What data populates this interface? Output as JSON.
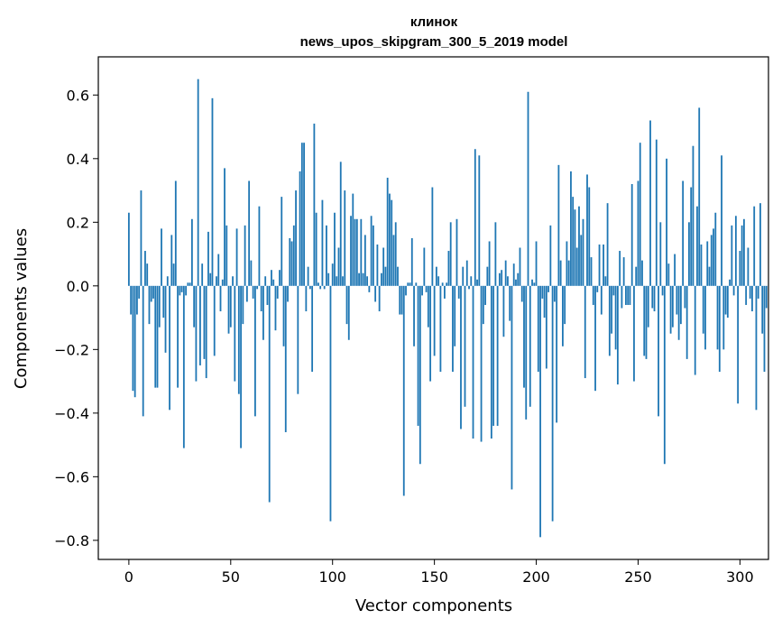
{
  "chart_data": {
    "type": "bar",
    "title": [
      "клинок",
      "news_upos_skipgram_300_5_2019 model"
    ],
    "xlabel": "Vector components",
    "ylabel": "Components values",
    "xlim": [
      -15,
      314
    ],
    "ylim": [
      -0.86,
      0.72
    ],
    "xticks": [
      0,
      50,
      100,
      150,
      200,
      250,
      300
    ],
    "yticks": [
      -0.8,
      -0.6,
      -0.4,
      -0.2,
      0.0,
      0.2,
      0.4,
      0.6
    ],
    "ytick_labels": [
      "−0.8",
      "−0.6",
      "−0.4",
      "−0.2",
      "0.0",
      "0.2",
      "0.4",
      "0.6"
    ],
    "bar_color": "#1f77b4",
    "values": [
      0.23,
      -0.09,
      -0.33,
      -0.35,
      -0.09,
      -0.04,
      0.3,
      -0.41,
      0.11,
      0.07,
      -0.12,
      -0.05,
      -0.04,
      -0.32,
      -0.32,
      -0.13,
      0.18,
      -0.1,
      -0.21,
      0.03,
      -0.39,
      0.16,
      0.07,
      0.33,
      -0.32,
      -0.03,
      -0.02,
      -0.51,
      -0.03,
      0.01,
      0.01,
      0.21,
      -0.13,
      -0.3,
      0.65,
      -0.25,
      0.07,
      -0.23,
      -0.29,
      0.17,
      0.04,
      0.59,
      -0.22,
      0.03,
      0.1,
      -0.08,
      0.02,
      0.37,
      0.19,
      -0.15,
      -0.13,
      0.03,
      -0.3,
      0.18,
      -0.34,
      -0.51,
      -0.12,
      0.19,
      -0.05,
      0.33,
      0.08,
      -0.04,
      -0.41,
      -0.01,
      0.25,
      -0.08,
      -0.17,
      0.03,
      -0.06,
      -0.68,
      0.05,
      0.02,
      -0.14,
      -0.04,
      0.05,
      0.28,
      -0.19,
      -0.46,
      -0.05,
      0.15,
      0.14,
      0.19,
      0.3,
      -0.34,
      0.36,
      0.45,
      0.45,
      -0.08,
      0.06,
      -0.01,
      -0.27,
      0.51,
      0.23,
      0.01,
      -0.01,
      0.27,
      -0.01,
      0.19,
      0.04,
      -0.74,
      0.07,
      0.23,
      0.03,
      0.12,
      0.39,
      0.03,
      0.3,
      -0.12,
      -0.17,
      0.22,
      0.29,
      0.21,
      0.21,
      0.04,
      0.21,
      0.04,
      0.16,
      0.03,
      -0.02,
      0.22,
      0.19,
      -0.05,
      0.13,
      -0.08,
      0.04,
      0.12,
      0.06,
      0.34,
      0.29,
      0.27,
      0.16,
      0.2,
      0.06,
      -0.09,
      -0.09,
      -0.66,
      -0.03,
      0.01,
      0.01,
      0.15,
      -0.19,
      0.01,
      -0.44,
      -0.56,
      -0.03,
      0.12,
      -0.02,
      -0.13,
      -0.3,
      0.31,
      -0.22,
      0.06,
      0.03,
      -0.27,
      0.01,
      -0.04,
      0.01,
      0.11,
      0.2,
      -0.27,
      -0.19,
      0.21,
      -0.04,
      -0.45,
      0.06,
      -0.38,
      0.08,
      -0.01,
      0.03,
      -0.48,
      0.43,
      0.02,
      0.41,
      -0.49,
      -0.12,
      -0.06,
      0.06,
      0.14,
      -0.48,
      -0.44,
      0.2,
      -0.44,
      0.04,
      0.05,
      -0.16,
      0.08,
      0.03,
      -0.11,
      -0.64,
      0.07,
      0.02,
      0.04,
      0.12,
      -0.05,
      -0.32,
      -0.42,
      0.61,
      -0.38,
      0.02,
      0.01,
      0.14,
      -0.27,
      -0.79,
      -0.04,
      -0.1,
      -0.26,
      -0.02,
      0.19,
      -0.74,
      -0.05,
      -0.43,
      0.38,
      0.08,
      -0.19,
      -0.12,
      0.14,
      0.08,
      0.36,
      0.28,
      0.24,
      0.12,
      0.25,
      0.16,
      0.21,
      -0.29,
      0.35,
      0.31,
      0.09,
      -0.06,
      -0.33,
      -0.02,
      0.13,
      -0.09,
      0.13,
      0.03,
      0.26,
      -0.22,
      -0.15,
      -0.03,
      -0.2,
      -0.31,
      0.11,
      -0.07,
      0.09,
      -0.06,
      -0.06,
      -0.06,
      0.32,
      -0.3,
      0.06,
      0.33,
      0.45,
      0.08,
      -0.22,
      -0.23,
      -0.13,
      0.52,
      -0.07,
      -0.08,
      0.46,
      -0.41,
      0.2,
      -0.03,
      -0.56,
      0.4,
      0.07,
      -0.15,
      -0.13,
      0.1,
      -0.09,
      -0.17,
      -0.12,
      0.33,
      -0.07,
      -0.23,
      0.2,
      0.31,
      0.44,
      -0.28,
      0.25,
      0.56,
      0.13,
      -0.15,
      -0.2,
      0.14,
      0.06,
      0.16,
      0.18,
      0.23,
      -0.2,
      -0.27,
      0.41,
      -0.2,
      -0.09,
      -0.1,
      0.02,
      0.19,
      -0.03,
      0.22,
      -0.37,
      0.11,
      0.19,
      0.21,
      -0.06,
      0.12,
      -0.04,
      -0.08,
      0.25,
      -0.39,
      -0.04,
      0.26,
      -0.15,
      -0.27,
      -0.07
    ]
  }
}
